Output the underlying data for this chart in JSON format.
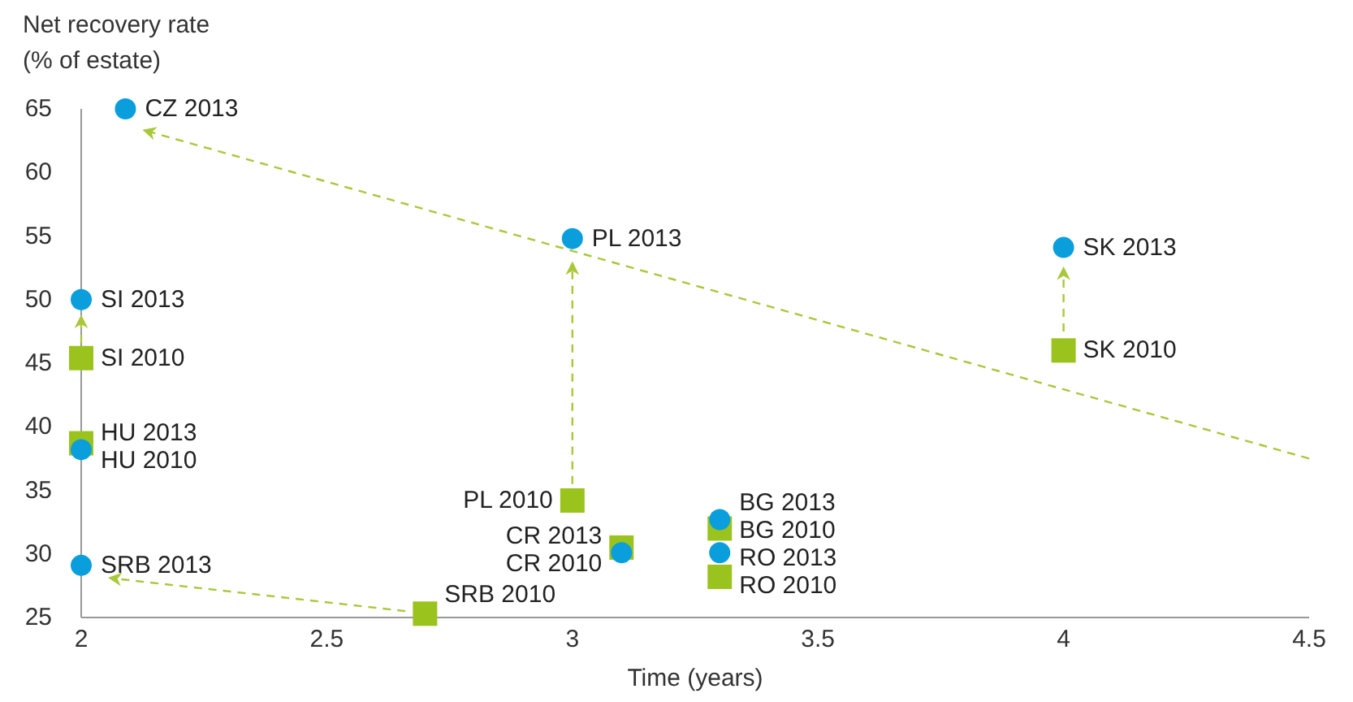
{
  "chart_data": {
    "type": "scatter",
    "ylabel": "Net recovery rate\n(% of estate)",
    "xlabel": "Time (years)",
    "xlim": [
      2,
      4.5
    ],
    "xticks": [
      2,
      2.5,
      3,
      3.5,
      4,
      4.5
    ],
    "ylim": [
      25,
      65
    ],
    "yticks": [
      25,
      30,
      35,
      40,
      45,
      50,
      55,
      60,
      65
    ],
    "grid": false,
    "series": [
      {
        "type": "line",
        "color": "#a8c83a",
        "line_style": "dashed",
        "x": [
          4.5,
          2.13
        ],
        "values": [
          37.5,
          63.3
        ]
      },
      {
        "type": "line",
        "color": "#a8c83a",
        "line_style": "dashed",
        "x": [
          2,
          2
        ],
        "values": [
          46.6,
          48.6
        ]
      },
      {
        "type": "line",
        "color": "#a8c83a",
        "line_style": "dashed",
        "x": [
          3,
          3
        ],
        "values": [
          35.5,
          52.8
        ]
      },
      {
        "type": "line",
        "color": "#a8c83a",
        "line_style": "dashed",
        "x": [
          4,
          4
        ],
        "values": [
          47.5,
          52.4
        ]
      },
      {
        "type": "line",
        "color": "#a8c83a",
        "line_style": "dashed",
        "x": [
          2.66,
          2.06
        ],
        "values": [
          25.5,
          28.1
        ]
      },
      {
        "color": "#9bc31e",
        "marker": "square",
        "x": [
          4,
          2,
          2,
          2.7,
          3,
          3.1,
          3.3,
          3.3
        ],
        "values": [
          46.0,
          45.4,
          38.7,
          25.3,
          34.2,
          30.5,
          32.0,
          28.2
        ]
      },
      {
        "color": "#0a9fdc",
        "marker": "circle",
        "x": [
          2.09,
          3,
          4,
          2,
          2,
          2,
          3.1,
          3.3,
          3.3
        ],
        "values": [
          65,
          54.8,
          54.1,
          50.0,
          38.2,
          29.1,
          30.1,
          32.7,
          30.1
        ]
      }
    ],
    "annotations": [
      {
        "text": "CZ 2013",
        "x": 2.09,
        "y": 65
      },
      {
        "text": "PL 2013",
        "x": 3,
        "y": 54.8
      },
      {
        "text": "SK 2013",
        "x": 4,
        "y": 54.1
      },
      {
        "text": "SK 2010",
        "x": 4,
        "y": 46.0
      },
      {
        "text": "SI 2013",
        "x": 2,
        "y": 50.0
      },
      {
        "text": "SI 2010",
        "x": 2,
        "y": 45.4
      },
      {
        "text": "HU 2013",
        "x": 2,
        "y": 38.7
      },
      {
        "text": "HU 2010",
        "x": 2,
        "y": 38.2
      },
      {
        "text": "SRB 2013",
        "x": 2,
        "y": 29.1
      },
      {
        "text": "SRB 2010",
        "x": 2.7,
        "y": 25.3
      },
      {
        "text": "PL 2010",
        "x": 3,
        "y": 34.2
      },
      {
        "text": "CR 2013",
        "x": 3.1,
        "y": 30.5
      },
      {
        "text": "CR 2010",
        "x": 3.1,
        "y": 30.1
      },
      {
        "text": "BG 2013",
        "x": 3.3,
        "y": 32.7
      },
      {
        "text": "BG 2010",
        "x": 3.3,
        "y": 32.0
      },
      {
        "text": "RO 2013",
        "x": 3.3,
        "y": 30.1
      },
      {
        "text": "RO 2010",
        "x": 3.3,
        "y": 28.2
      }
    ]
  }
}
